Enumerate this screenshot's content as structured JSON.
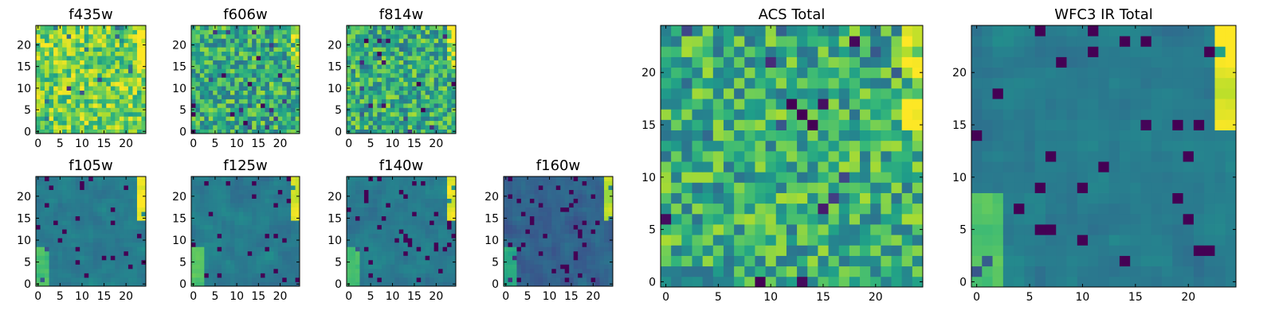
{
  "chart_data": [
    {
      "type": "heatmap",
      "title": "f435w",
      "grid_size": 25,
      "xticks": [
        0,
        5,
        10,
        15,
        20
      ],
      "yticks": [
        0,
        5,
        10,
        15,
        20
      ],
      "xlim": [
        -0.5,
        24.5
      ],
      "ylim": [
        -0.5,
        24.5
      ],
      "colormap": "viridis",
      "texture": "noisy-bright",
      "seed": 11
    },
    {
      "type": "heatmap",
      "title": "f606w",
      "grid_size": 25,
      "xticks": [
        0,
        5,
        10,
        15,
        20
      ],
      "yticks": [
        0,
        5,
        10,
        15,
        20
      ],
      "xlim": [
        -0.5,
        24.5
      ],
      "ylim": [
        -0.5,
        24.5
      ],
      "colormap": "viridis",
      "texture": "noisy-mid",
      "seed": 23
    },
    {
      "type": "heatmap",
      "title": "f814w",
      "grid_size": 25,
      "xticks": [
        0,
        5,
        10,
        15,
        20
      ],
      "yticks": [
        0,
        5,
        10,
        15,
        20
      ],
      "xlim": [
        -0.5,
        24.5
      ],
      "ylim": [
        -0.5,
        24.5
      ],
      "colormap": "viridis",
      "texture": "noisy-mid",
      "seed": 37
    },
    {
      "type": "heatmap",
      "title": "f105w",
      "grid_size": 25,
      "xticks": [
        0,
        5,
        10,
        15,
        20
      ],
      "yticks": [
        0,
        5,
        10,
        15,
        20
      ],
      "xlim": [
        -0.5,
        24.5
      ],
      "ylim": [
        -0.5,
        24.5
      ],
      "colormap": "viridis",
      "texture": "smooth-dark",
      "seed": 41
    },
    {
      "type": "heatmap",
      "title": "f125w",
      "grid_size": 25,
      "xticks": [
        0,
        5,
        10,
        15,
        20
      ],
      "yticks": [
        0,
        5,
        10,
        15,
        20
      ],
      "xlim": [
        -0.5,
        24.5
      ],
      "ylim": [
        -0.5,
        24.5
      ],
      "colormap": "viridis",
      "texture": "smooth-dark",
      "seed": 53
    },
    {
      "type": "heatmap",
      "title": "f140w",
      "grid_size": 25,
      "xticks": [
        0,
        5,
        10,
        15,
        20
      ],
      "yticks": [
        0,
        5,
        10,
        15,
        20
      ],
      "xlim": [
        -0.5,
        24.5
      ],
      "ylim": [
        -0.5,
        24.5
      ],
      "colormap": "viridis",
      "texture": "smooth-dark",
      "seed": 67
    },
    {
      "type": "heatmap",
      "title": "f160w",
      "grid_size": 25,
      "xticks": [
        0,
        5,
        10,
        15,
        20
      ],
      "yticks": [
        0,
        5,
        10,
        15,
        20
      ],
      "xlim": [
        -0.5,
        24.5
      ],
      "ylim": [
        -0.5,
        24.5
      ],
      "colormap": "viridis",
      "texture": "smooth-darker",
      "seed": 79
    },
    {
      "type": "heatmap",
      "title": "ACS Total",
      "grid_size": 25,
      "xticks": [
        0,
        5,
        10,
        15,
        20
      ],
      "yticks": [
        0,
        5,
        10,
        15,
        20
      ],
      "xlim": [
        -0.5,
        24.5
      ],
      "ylim": [
        -0.5,
        24.5
      ],
      "colormap": "viridis",
      "texture": "noisy-mid",
      "seed": 97
    },
    {
      "type": "heatmap",
      "title": "WFC3 IR Total",
      "grid_size": 25,
      "xticks": [
        0,
        5,
        10,
        15,
        20
      ],
      "yticks": [
        0,
        5,
        10,
        15,
        20
      ],
      "xlim": [
        -0.5,
        24.5
      ],
      "ylim": [
        -0.5,
        24.5
      ],
      "colormap": "viridis",
      "texture": "smooth-dark",
      "seed": 113
    }
  ]
}
